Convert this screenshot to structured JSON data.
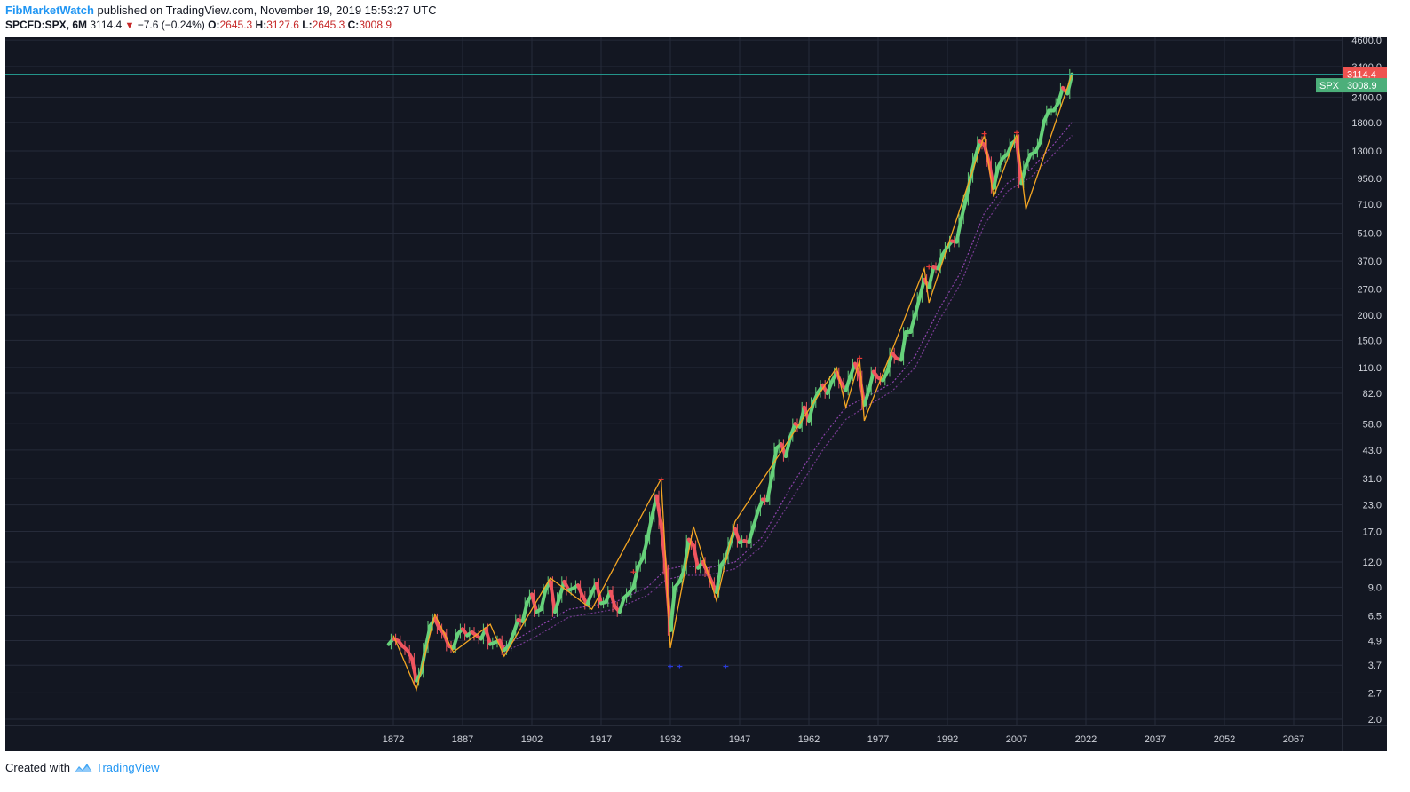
{
  "header": {
    "author": "FibMarketWatch",
    "published": "published on TradingView.com, November 19, 2019 15:53:27 UTC",
    "symbol": "SPCFD:SPX, 6M",
    "last": "3114.4",
    "change": "−7.6 (−0.24%)",
    "open_label": "O:",
    "open": "2645.3",
    "high_label": "H:",
    "high": "3127.6",
    "low_label": "L:",
    "low": "2645.3",
    "close_label": "C:",
    "close": "3008.9"
  },
  "footer": {
    "created_with": "Created with",
    "brand": "TradingView"
  },
  "colors": {
    "background": "#131722",
    "grid": "#262b3a",
    "up": "#66d17a",
    "down": "#f0555f",
    "zigzag": "#f5a623",
    "ma": "#8e44ad",
    "price_line": "#26a69a",
    "tag_red": "#ef5350",
    "tag_green": "#4caf7a"
  },
  "chart_data": {
    "type": "line",
    "title": "",
    "x_ticks": [
      "1872",
      "1887",
      "1902",
      "1917",
      "1932",
      "1947",
      "1962",
      "1977",
      "1992",
      "2007",
      "2022",
      "2037",
      "2052",
      "2067"
    ],
    "x_tick_years": [
      1872,
      1887,
      1902,
      1917,
      1932,
      1947,
      1962,
      1977,
      1992,
      2007,
      2022,
      2037,
      2052,
      2067
    ],
    "y_scale": "log",
    "y_ticks": [
      "4600.0",
      "3400.0",
      "2400.0",
      "1800.0",
      "1300.0",
      "950.0",
      "710.0",
      "510.0",
      "370.0",
      "270.0",
      "200.0",
      "150.0",
      "110.0",
      "82.0",
      "58.0",
      "43.0",
      "31.0",
      "23.0",
      "17.0",
      "12.0",
      "9.0",
      "6.5",
      "4.9",
      "3.7",
      "2.7",
      "2.0"
    ],
    "y_tick_values": [
      4600,
      3400,
      2400,
      1800,
      1300,
      950,
      710,
      510,
      370,
      270,
      200,
      150,
      110,
      82,
      58,
      43,
      31,
      23,
      17,
      12,
      9,
      6.5,
      4.9,
      3.7,
      2.7,
      2.0
    ],
    "xlim": [
      1866,
      2082
    ],
    "ylim": [
      1.85,
      4700
    ],
    "price_tags": [
      {
        "label": "3114.4",
        "value": 3114.4,
        "color": "red"
      },
      {
        "label": "SPX",
        "price": "3008.9",
        "value": 3008.9,
        "color": "green"
      }
    ],
    "series": [
      {
        "kind": "price",
        "points": [
          [
            1871,
            4.7
          ],
          [
            1872,
            5.0
          ],
          [
            1873,
            4.9
          ],
          [
            1874,
            4.6
          ],
          [
            1875,
            4.4
          ],
          [
            1876,
            4.0
          ],
          [
            1877,
            3.1
          ],
          [
            1878,
            3.4
          ],
          [
            1879,
            4.5
          ],
          [
            1880,
            5.8
          ],
          [
            1881,
            6.3
          ],
          [
            1882,
            5.6
          ],
          [
            1883,
            5.3
          ],
          [
            1884,
            4.6
          ],
          [
            1885,
            4.5
          ],
          [
            1886,
            5.3
          ],
          [
            1887,
            5.6
          ],
          [
            1888,
            5.2
          ],
          [
            1889,
            5.4
          ],
          [
            1890,
            5.2
          ],
          [
            1891,
            5.0
          ],
          [
            1892,
            5.6
          ],
          [
            1893,
            4.7
          ],
          [
            1894,
            4.8
          ],
          [
            1895,
            4.9
          ],
          [
            1896,
            4.4
          ],
          [
            1897,
            4.6
          ],
          [
            1898,
            5.3
          ],
          [
            1899,
            6.2
          ],
          [
            1900,
            6.1
          ],
          [
            1901,
            7.6
          ],
          [
            1902,
            8.3
          ],
          [
            1903,
            6.8
          ],
          [
            1904,
            7.0
          ],
          [
            1905,
            8.8
          ],
          [
            1906,
            9.6
          ],
          [
            1907,
            6.8
          ],
          [
            1908,
            8.0
          ],
          [
            1909,
            9.6
          ],
          [
            1910,
            8.7
          ],
          [
            1911,
            8.9
          ],
          [
            1912,
            9.2
          ],
          [
            1913,
            8.1
          ],
          [
            1914,
            7.4
          ],
          [
            1915,
            8.5
          ],
          [
            1916,
            9.4
          ],
          [
            1917,
            7.5
          ],
          [
            1918,
            7.6
          ],
          [
            1919,
            8.6
          ],
          [
            1920,
            7.2
          ],
          [
            1921,
            6.8
          ],
          [
            1922,
            8.0
          ],
          [
            1923,
            8.4
          ],
          [
            1924,
            9.0
          ],
          [
            1925,
            11.4
          ],
          [
            1926,
            12.5
          ],
          [
            1927,
            15.5
          ],
          [
            1928,
            20.0
          ],
          [
            1929,
            25.5
          ],
          [
            1930,
            18.5
          ],
          [
            1931,
            11.0
          ],
          [
            1932,
            5.5
          ],
          [
            1933,
            9.0
          ],
          [
            1934,
            9.6
          ],
          [
            1935,
            11.0
          ],
          [
            1936,
            15.5
          ],
          [
            1937,
            14.5
          ],
          [
            1938,
            11.2
          ],
          [
            1939,
            12.0
          ],
          [
            1940,
            10.7
          ],
          [
            1941,
            9.5
          ],
          [
            1942,
            8.5
          ],
          [
            1943,
            11.6
          ],
          [
            1944,
            12.5
          ],
          [
            1945,
            15.0
          ],
          [
            1946,
            17.5
          ],
          [
            1947,
            15.0
          ],
          [
            1948,
            15.3
          ],
          [
            1949,
            15.0
          ],
          [
            1950,
            18.0
          ],
          [
            1951,
            21.5
          ],
          [
            1952,
            24.5
          ],
          [
            1953,
            24.3
          ],
          [
            1954,
            32.0
          ],
          [
            1955,
            44.0
          ],
          [
            1956,
            46.0
          ],
          [
            1957,
            40.0
          ],
          [
            1958,
            50.0
          ],
          [
            1959,
            58.0
          ],
          [
            1960,
            56.0
          ],
          [
            1961,
            70.0
          ],
          [
            1962,
            60.0
          ],
          [
            1963,
            74.0
          ],
          [
            1964,
            83.0
          ],
          [
            1965,
            90.0
          ],
          [
            1966,
            82.0
          ],
          [
            1967,
            94.0
          ],
          [
            1968,
            104.0
          ],
          [
            1969,
            92.0
          ],
          [
            1970,
            85.0
          ],
          [
            1971,
            100.0
          ],
          [
            1972,
            115.0
          ],
          [
            1973,
            100.0
          ],
          [
            1974,
            72.0
          ],
          [
            1975,
            85.0
          ],
          [
            1976,
            105.0
          ],
          [
            1977,
            98.0
          ],
          [
            1978,
            95.0
          ],
          [
            1979,
            105.0
          ],
          [
            1980,
            130.0
          ],
          [
            1981,
            122.0
          ],
          [
            1982,
            120.0
          ],
          [
            1983,
            165.0
          ],
          [
            1984,
            165.0
          ],
          [
            1985,
            200.0
          ],
          [
            1986,
            245.0
          ],
          [
            1987,
            300.0
          ],
          [
            1988,
            275.0
          ],
          [
            1989,
            345.0
          ],
          [
            1990,
            340.0
          ],
          [
            1991,
            400.0
          ],
          [
            1992,
            435.0
          ],
          [
            1993,
            465.0
          ],
          [
            1994,
            460.0
          ],
          [
            1995,
            600.0
          ],
          [
            1996,
            740.0
          ],
          [
            1997,
            960.0
          ],
          [
            1998,
            1200.0
          ],
          [
            1999,
            1450.0
          ],
          [
            2000,
            1400.0
          ],
          [
            2001,
            1150.0
          ],
          [
            2002,
            850.0
          ],
          [
            2003,
            1080.0
          ],
          [
            2004,
            1200.0
          ],
          [
            2005,
            1250.0
          ],
          [
            2006,
            1420.0
          ],
          [
            2007,
            1480.0
          ],
          [
            2008,
            900.0
          ],
          [
            2009,
            1100.0
          ],
          [
            2010,
            1250.0
          ],
          [
            2011,
            1280.0
          ],
          [
            2012,
            1420.0
          ],
          [
            2013,
            1840.0
          ],
          [
            2014,
            2060.0
          ],
          [
            2015,
            2060.0
          ],
          [
            2016,
            2240.0
          ],
          [
            2017,
            2670.0
          ],
          [
            2018,
            2500.0
          ],
          [
            2019,
            3114.4
          ]
        ]
      },
      {
        "kind": "zigzag",
        "points": [
          [
            1872,
            5.2
          ],
          [
            1877,
            2.8
          ],
          [
            1881,
            6.6
          ],
          [
            1885,
            4.3
          ],
          [
            1893,
            5.9
          ],
          [
            1896,
            4.1
          ],
          [
            1906,
            10.0
          ],
          [
            1915,
            7.0
          ],
          [
            1930,
            31.0
          ],
          [
            1932,
            4.5
          ],
          [
            1937,
            18.0
          ],
          [
            1942,
            7.7
          ],
          [
            1946,
            19.0
          ],
          [
            1968,
            110.0
          ],
          [
            1970,
            70.0
          ],
          [
            1973,
            120.0
          ],
          [
            1974,
            60.0
          ],
          [
            1987,
            340.0
          ],
          [
            1988,
            230.0
          ],
          [
            2000,
            1550.0
          ],
          [
            2002,
            770.0
          ],
          [
            2007,
            1570.0
          ],
          [
            2009,
            670.0
          ],
          [
            2019,
            3127.6
          ]
        ]
      },
      {
        "kind": "ma1",
        "points": [
          [
            1896,
            4.6
          ],
          [
            1902,
            5.5
          ],
          [
            1910,
            7.0
          ],
          [
            1920,
            7.6
          ],
          [
            1927,
            9.0
          ],
          [
            1931,
            11.0
          ],
          [
            1935,
            11.5
          ],
          [
            1940,
            11.2
          ],
          [
            1946,
            12.0
          ],
          [
            1952,
            16.0
          ],
          [
            1958,
            28.0
          ],
          [
            1965,
            50.0
          ],
          [
            1970,
            70.0
          ],
          [
            1975,
            80.0
          ],
          [
            1980,
            92.0
          ],
          [
            1985,
            125.0
          ],
          [
            1990,
            210.0
          ],
          [
            1995,
            330.0
          ],
          [
            2000,
            640.0
          ],
          [
            2005,
            900.0
          ],
          [
            2010,
            1050.0
          ],
          [
            2015,
            1400.0
          ],
          [
            2019,
            1800.0
          ]
        ]
      },
      {
        "kind": "ma2",
        "points": [
          [
            1896,
            4.3
          ],
          [
            1902,
            5.0
          ],
          [
            1910,
            6.4
          ],
          [
            1920,
            7.0
          ],
          [
            1927,
            8.2
          ],
          [
            1931,
            9.8
          ],
          [
            1935,
            10.3
          ],
          [
            1940,
            10.3
          ],
          [
            1946,
            11.1
          ],
          [
            1952,
            14.5
          ],
          [
            1958,
            24.0
          ],
          [
            1965,
            43.0
          ],
          [
            1970,
            61.0
          ],
          [
            1975,
            72.0
          ],
          [
            1980,
            84.0
          ],
          [
            1985,
            110.0
          ],
          [
            1990,
            185.0
          ],
          [
            1995,
            290.0
          ],
          [
            2000,
            560.0
          ],
          [
            2005,
            820.0
          ],
          [
            2010,
            960.0
          ],
          [
            2015,
            1250.0
          ],
          [
            2019,
            1550.0
          ]
        ]
      },
      {
        "kind": "peak_markers",
        "points": [
          [
            1924,
            10.5
          ],
          [
            1930,
            30.0
          ],
          [
            1973,
            120.0
          ],
          [
            1988,
            340.0
          ],
          [
            2000,
            1550.0
          ],
          [
            2007,
            1570.0
          ]
        ]
      },
      {
        "kind": "low_markers",
        "points": [
          [
            1932,
            3.65
          ],
          [
            1934,
            3.65
          ],
          [
            1944,
            3.65
          ]
        ]
      }
    ]
  }
}
